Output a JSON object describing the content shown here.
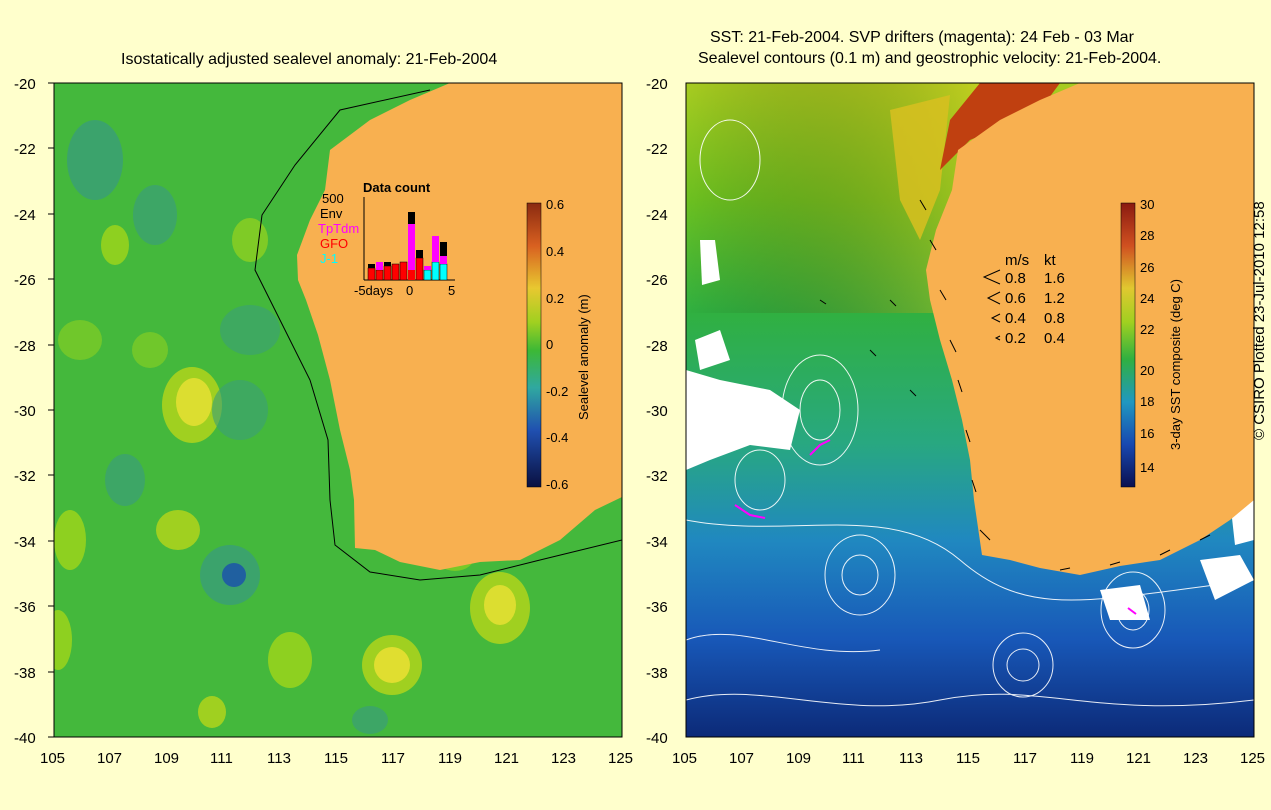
{
  "left_panel": {
    "title": "Isostatically adjusted sealevel anomaly: 21-Feb-2004",
    "y_ticks": [
      "-20",
      "-22",
      "-24",
      "-26",
      "-28",
      "-30",
      "-32",
      "-34",
      "-36",
      "-38",
      "-40"
    ],
    "x_ticks": [
      "105",
      "107",
      "109",
      "111",
      "113",
      "115",
      "117",
      "119",
      "121",
      "123",
      "125"
    ],
    "colorbar": {
      "label": "Sealevel anomaly (m)",
      "ticks": [
        "0.6",
        "0.4",
        "0.2",
        "0",
        "-0.2",
        "-0.4",
        "-0.6"
      ]
    },
    "data_count": {
      "title": "Data count",
      "scale_label": "500",
      "legend": [
        {
          "label": "Env",
          "color": "#000000"
        },
        {
          "label": "TpTdm",
          "color": "#ff00ff"
        },
        {
          "label": "GFO",
          "color": "#ff0000"
        },
        {
          "label": "J-1",
          "color": "#00ffff"
        }
      ],
      "x_labels": [
        "-5days",
        "0",
        "5"
      ]
    }
  },
  "right_panel": {
    "title_line1": "SST: 21-Feb-2004. SVP drifters (magenta): 24 Feb - 03 Mar",
    "title_line2": "Sealevel contours (0.1 m) and geostrophic velocity: 21-Feb-2004.",
    "y_ticks": [
      "-20",
      "-22",
      "-24",
      "-26",
      "-28",
      "-30",
      "-32",
      "-34",
      "-36",
      "-38",
      "-40"
    ],
    "x_ticks": [
      "105",
      "107",
      "109",
      "111",
      "113",
      "115",
      "117",
      "119",
      "121",
      "123",
      "125"
    ],
    "colorbar": {
      "label": "3-day SST composite (deg C)",
      "ticks": [
        "30",
        "28",
        "26",
        "24",
        "22",
        "20",
        "18",
        "16",
        "14"
      ]
    },
    "velocity_key": {
      "header_ms": "m/s",
      "header_kt": "kt",
      "rows": [
        {
          "ms": "0.8",
          "kt": "1.6"
        },
        {
          "ms": "0.6",
          "kt": "1.2"
        },
        {
          "ms": "0.4",
          "kt": "0.8"
        },
        {
          "ms": "0.2",
          "kt": "0.4"
        }
      ]
    }
  },
  "copyright": "© CSIRO Plotted 23-Jul-2010 12:58",
  "colors": {
    "land": "#f8b050",
    "ocean_green": "#3cb836",
    "background": "#ffffcc"
  }
}
